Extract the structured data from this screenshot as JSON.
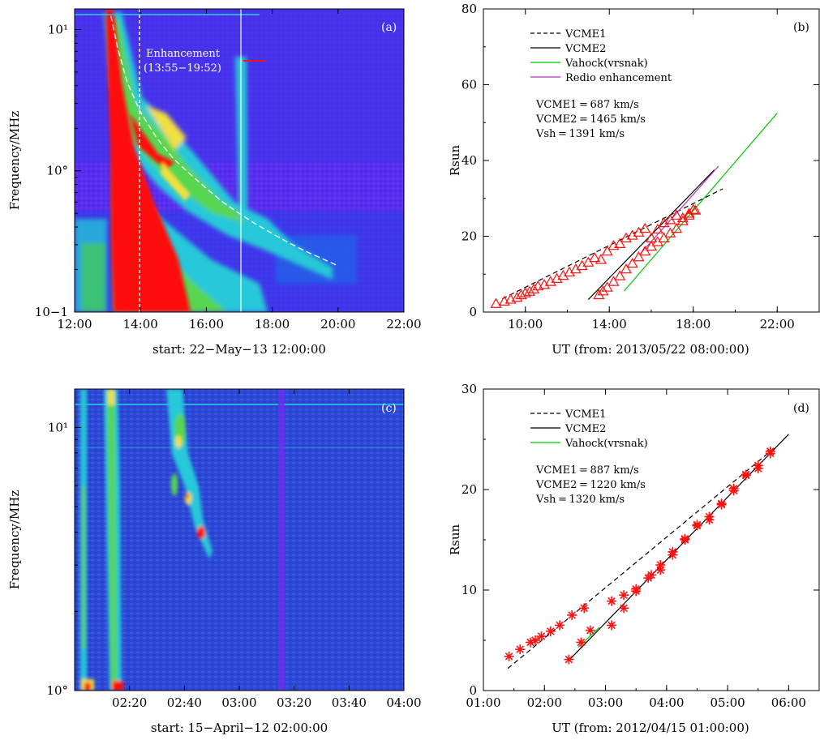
{
  "chart_data": [
    {
      "id": "a",
      "type": "heatmap",
      "panel_label": "(a)",
      "ylabel": "Frequency/MHz",
      "xlabel": "start: 22−May−13 12:00:00",
      "x_tick_labels": [
        "12:00",
        "14:00",
        "16:00",
        "18:00",
        "20:00",
        "22:00"
      ],
      "y_scale": "log",
      "y_tick_labels": [
        "10−1",
        "10°",
        "10¹"
      ],
      "xlim_hours": [
        12,
        22
      ],
      "ylim_mhz": [
        0.1,
        14
      ],
      "annotation_line1": "Enhancement",
      "annotation_line2": "(13:55−19:52)",
      "vertical_markers_hours": [
        14.0,
        17.2
      ],
      "fit_curve": {
        "x_hours": [
          13.1,
          13.3,
          13.6,
          14.0,
          14.5,
          15.0,
          15.5,
          16.0,
          16.5,
          17.0,
          17.5,
          18.0,
          18.5,
          19.0,
          19.5,
          19.95
        ],
        "y_mhz": [
          12.5,
          7.5,
          4.2,
          2.6,
          1.7,
          1.22,
          0.95,
          0.75,
          0.6,
          0.5,
          0.42,
          0.36,
          0.31,
          0.27,
          0.24,
          0.215
        ]
      },
      "colors": {
        "background": "#5a2cf0",
        "low": "#1e3cf0",
        "mid": "#27c8d9",
        "high": "#f0e040",
        "peak": "#ff1010"
      }
    },
    {
      "id": "b",
      "type": "scatter",
      "panel_label": "(b)",
      "ylabel": "Rsun",
      "xlabel": "UT (from: 2013/05/22 08:00:00)",
      "x_tick_labels": [
        "10:00",
        "14:00",
        "18:00",
        "22:00"
      ],
      "xlim_hours": [
        8,
        24
      ],
      "ylim": [
        0,
        80
      ],
      "y_ticks": [
        0,
        20,
        40,
        60,
        80
      ],
      "legend": [
        "VCME1",
        "VCME2",
        "Vahock(vrsnak)",
        "Redio enhancement"
      ],
      "speeds": [
        "VCME1 = 687 km/s",
        "VCME2 = 1465 km/s",
        "Vsh = 1391 km/s"
      ],
      "lines": [
        {
          "name": "VCME1",
          "style": "dashed",
          "color": "#000000",
          "x": [
            8.9,
            19.4
          ],
          "y": [
            3.5,
            32.5
          ]
        },
        {
          "name": "VCME2",
          "style": "solid",
          "color": "#000000",
          "x": [
            13.0,
            19.0
          ],
          "y": [
            3.3,
            37.5
          ]
        },
        {
          "name": "Vahock(vrsnak)",
          "style": "solid",
          "color": "#00c800",
          "x": [
            14.7,
            22.0
          ],
          "y": [
            5.5,
            52.5
          ]
        },
        {
          "name": "Redio enhancement",
          "style": "solid",
          "color": "#b030c0",
          "x": [
            15.5,
            19.2
          ],
          "y": [
            15.5,
            38.5
          ]
        }
      ],
      "triangles": {
        "x": [
          8.6,
          9.0,
          9.3,
          9.6,
          9.8,
          10.0,
          10.2,
          10.4,
          10.6,
          10.9,
          11.2,
          11.5,
          11.8,
          12.1,
          12.4,
          12.7,
          13.0,
          13.3,
          13.6,
          13.9,
          14.2,
          14.5,
          14.8,
          15.1,
          15.4,
          15.7,
          16.0,
          16.3,
          16.6,
          16.9,
          17.2,
          17.5,
          17.8,
          18.1
        ],
        "y": [
          2.2,
          2.8,
          3.3,
          3.8,
          4.5,
          5.0,
          5.4,
          6.0,
          6.8,
          7.2,
          8.0,
          8.8,
          9.6,
          10.5,
          11.3,
          12.2,
          13.1,
          14.3,
          13.8,
          16.0,
          17.5,
          18.0,
          19.5,
          20.2,
          21.0,
          22.0,
          19.5,
          21.8,
          23.5,
          24.3,
          25.5,
          24.8,
          26.0,
          26.8
        ]
      },
      "triangles2": {
        "x": [
          13.5,
          13.7,
          13.9,
          14.2,
          14.5,
          14.8,
          15.1,
          15.4,
          15.7,
          16.0,
          16.3,
          16.6,
          16.9,
          17.2,
          17.5,
          17.8,
          18.0
        ],
        "y": [
          4.5,
          5.5,
          6.5,
          8.0,
          9.5,
          11.3,
          12.8,
          14.5,
          16.0,
          17.3,
          18.5,
          19.5,
          20.8,
          22.0,
          24.0,
          25.5,
          27.0
        ]
      },
      "colors": {
        "marker": "#ff1010"
      }
    },
    {
      "id": "c",
      "type": "heatmap",
      "panel_label": "(c)",
      "ylabel": "Frequency/MHz",
      "xlabel": "start: 15−April−12 02:00:00",
      "x_tick_labels": [
        "02:20",
        "02:40",
        "03:00",
        "03:20",
        "03:40",
        "04:00"
      ],
      "y_scale": "log",
      "y_tick_labels": [
        "10°",
        "10¹"
      ],
      "xlim_minutes": [
        0,
        120
      ],
      "ylim_mhz": [
        1,
        14
      ],
      "colors": {
        "background": "#2a4ed8",
        "mid": "#27c8d9",
        "high": "#f0e040",
        "peak": "#ff1010"
      }
    },
    {
      "id": "d",
      "type": "scatter",
      "panel_label": "(d)",
      "ylabel": "Rsun",
      "xlabel": "UT (from: 2012/04/15 01:00:00)",
      "x_tick_labels": [
        "01:00",
        "02:00",
        "03:00",
        "04:00",
        "05:00",
        "06:00"
      ],
      "xlim_hours": [
        1,
        6.5
      ],
      "ylim": [
        0,
        30
      ],
      "y_ticks": [
        0,
        10,
        20,
        30
      ],
      "legend": [
        "VCME1",
        "VCME2",
        "Vahock(vrsnak)"
      ],
      "speeds": [
        "VCME1 = 887 km/s",
        "VCME2 = 1220 km/s",
        "Vsh = 1320 km/s"
      ],
      "lines": [
        {
          "name": "VCME1",
          "style": "dashed",
          "color": "#000000",
          "x": [
            1.4,
            5.8
          ],
          "y": [
            2.2,
            24.3
          ]
        },
        {
          "name": "VCME2",
          "style": "solid",
          "color": "#000000",
          "x": [
            2.4,
            6.0
          ],
          "y": [
            3.0,
            25.5
          ]
        },
        {
          "name": "Vahock(vrsnak)",
          "style": "solid",
          "color": "#00c800",
          "x": [
            2.55,
            2.9
          ],
          "y": [
            4.3,
            6.3
          ]
        }
      ],
      "stars": {
        "x": [
          1.42,
          1.6,
          1.77,
          1.85,
          1.95,
          2.1,
          2.25,
          2.45,
          2.65,
          2.4,
          2.6,
          2.75,
          3.1,
          3.3,
          3.5,
          3.75,
          3.9,
          4.1,
          4.3,
          4.5,
          4.7,
          4.9,
          5.1,
          5.3,
          5.5,
          5.7,
          3.1,
          3.3,
          3.5,
          3.7,
          3.9,
          4.1,
          4.3,
          4.5,
          4.7,
          4.9,
          5.1,
          5.3,
          5.5,
          5.7
        ],
        "y": [
          3.4,
          4.1,
          4.8,
          5.0,
          5.4,
          5.9,
          6.5,
          7.5,
          8.2,
          3.1,
          4.8,
          6.0,
          6.5,
          8.2,
          9.9,
          11.5,
          12.5,
          13.8,
          15.0,
          16.4,
          17.3,
          18.6,
          20.1,
          21.5,
          22.1,
          23.8,
          8.9,
          9.5,
          10.1,
          11.2,
          12.0,
          13.5,
          15.1,
          16.5,
          17.0,
          18.5,
          19.9,
          21.4,
          22.4,
          23.6
        ]
      },
      "colors": {
        "marker": "#ff1010"
      }
    }
  ]
}
